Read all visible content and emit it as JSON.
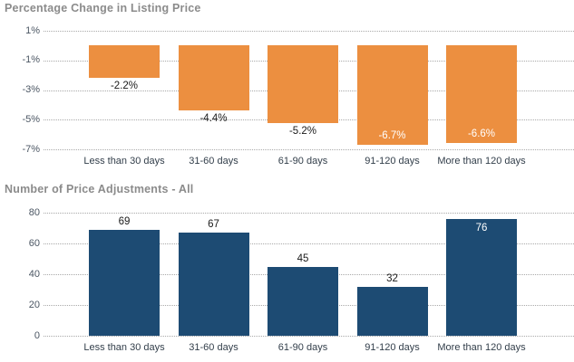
{
  "colors": {
    "orange_bar": "#EC8F40",
    "blue_bar": "#1D4B73",
    "title_gray": "#8B8B8B",
    "axis_text": "#4B5663",
    "category_text": "#323E4A",
    "value_label_dark": "#1A1A1A",
    "value_label_light": "#FFFFFF",
    "gridline": "#A9A9A9",
    "background": "#FFFFFF"
  },
  "chart_data": [
    {
      "type": "bar",
      "title": "Percentage Change in Listing Price",
      "categories": [
        "Less than 30 days",
        "31-60 days",
        "61-90 days",
        "91-120 days",
        "More than 120 days"
      ],
      "values": [
        -2.2,
        -4.4,
        -5.2,
        -6.7,
        -6.6
      ],
      "value_labels": [
        "-2.2%",
        "-4.4%",
        "-5.2%",
        "-6.7%",
        "-6.6%"
      ],
      "label_inside": [
        false,
        false,
        false,
        true,
        true
      ],
      "bar_color": "#EC8F40",
      "ytick_labels": [
        "1%",
        "-1%",
        "-3%",
        "-5%",
        "-7%"
      ],
      "ytick_values": [
        1,
        -1,
        -3,
        -5,
        -7
      ],
      "ylim": [
        -7,
        1
      ],
      "xlabel": "",
      "ylabel": "",
      "grid": "dotted horizontal",
      "legend": "none"
    },
    {
      "type": "bar",
      "title": "Number of Price Adjustments - All",
      "categories": [
        "Less than 30 days",
        "31-60 days",
        "61-90 days",
        "91-120 days",
        "More than 120 days"
      ],
      "values": [
        69,
        67,
        45,
        32,
        76
      ],
      "value_labels": [
        "69",
        "67",
        "45",
        "32",
        "76"
      ],
      "label_inside": [
        false,
        false,
        false,
        false,
        true
      ],
      "bar_color": "#1D4B73",
      "ytick_labels": [
        "80",
        "60",
        "40",
        "20",
        "0"
      ],
      "ytick_values": [
        80,
        60,
        40,
        20,
        0
      ],
      "ylim": [
        0,
        80
      ],
      "xlabel": "",
      "ylabel": "",
      "grid": "dotted horizontal",
      "legend": "none"
    }
  ]
}
